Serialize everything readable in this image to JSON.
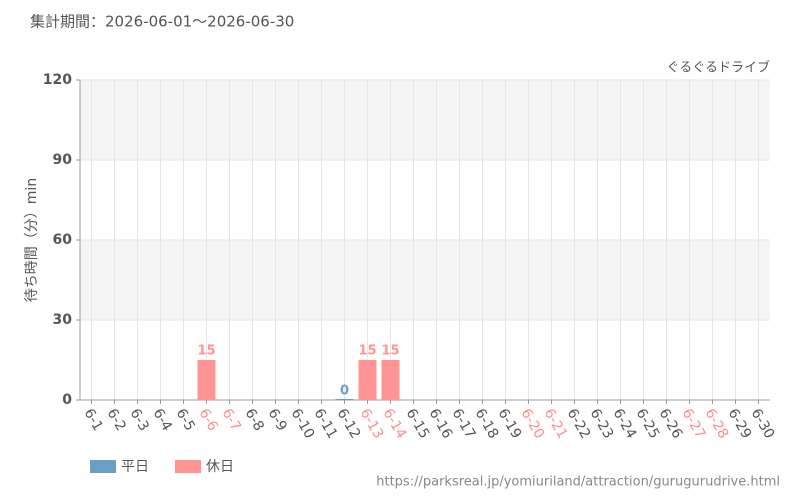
{
  "chart_data": {
    "type": "bar",
    "title": "集計期間：2026-06-01～2026-06-30",
    "subtitle": "ぐるぐるドライブ",
    "y_label": "待ち時間（分）min",
    "source": "https://parksreal.jp/yomiuriland/attraction/gurugurudrive.html",
    "categories": [
      "6-1",
      "6-2",
      "6-3",
      "6-4",
      "6-5",
      "6-6",
      "6-7",
      "6-8",
      "6-9",
      "6-10",
      "6-11",
      "6-12",
      "6-13",
      "6-14",
      "6-15",
      "6-16",
      "6-17",
      "6-18",
      "6-19",
      "6-20",
      "6-21",
      "6-22",
      "6-23",
      "6-24",
      "6-25",
      "6-26",
      "6-27",
      "6-28",
      "6-29",
      "6-30"
    ],
    "category_colors": [
      "#555",
      "#555",
      "#555",
      "#555",
      "#555",
      "#ff8c8c",
      "#ff8c8c",
      "#555",
      "#555",
      "#555",
      "#555",
      "#555",
      "#ff8c8c",
      "#ff8c8c",
      "#555",
      "#555",
      "#555",
      "#555",
      "#555",
      "#ff8c8c",
      "#ff8c8c",
      "#555",
      "#555",
      "#555",
      "#555",
      "#555",
      "#ff8c8c",
      "#ff8c8c",
      "#555",
      "#555"
    ],
    "series": [
      {
        "name": "平日",
        "color": "#6a9ec5",
        "values": [
          null,
          null,
          null,
          null,
          null,
          null,
          null,
          null,
          null,
          null,
          null,
          0,
          null,
          null,
          null,
          null,
          null,
          null,
          null,
          null,
          null,
          null,
          null,
          null,
          null,
          null,
          null,
          null,
          null,
          null
        ]
      },
      {
        "name": "休日",
        "color": "#ff9494",
        "values": [
          null,
          null,
          null,
          null,
          null,
          15,
          null,
          null,
          null,
          null,
          null,
          null,
          15,
          15,
          null,
          null,
          null,
          null,
          null,
          null,
          null,
          null,
          null,
          null,
          null,
          null,
          null,
          null,
          null,
          null
        ]
      }
    ],
    "ylim": [
      0,
      120
    ],
    "yticks": [
      0,
      30,
      60,
      90,
      120
    ],
    "grid": true
  }
}
